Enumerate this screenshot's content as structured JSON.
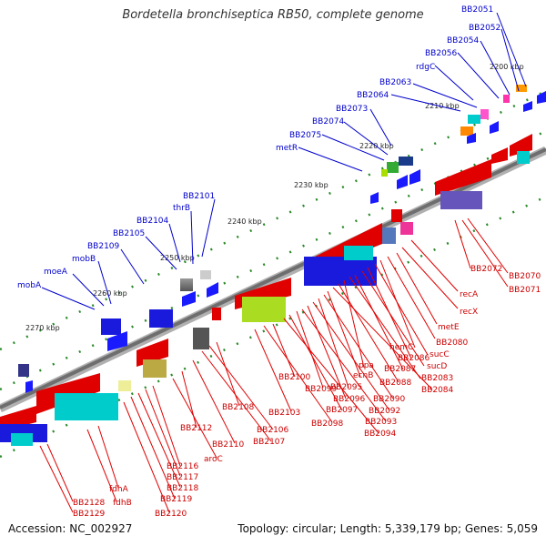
{
  "title": "Bordetella bronchiseptica RB50, complete genome",
  "footer": {
    "accession_label": "Accession:",
    "accession": "NC_002927",
    "topology_label": "Topology:",
    "topology": "circular;",
    "length_label": "Length:",
    "length": "5,339,179 bp;",
    "genes_label": "Genes:",
    "genes": "5,059"
  },
  "colors": {
    "forward": "#0000cc",
    "reverse": "#cc0000",
    "ticks": "#228822",
    "backbone": "#777777"
  },
  "ticks": [
    "2200 kbp",
    "2210 kbp",
    "2220 kbp",
    "2230 kbp",
    "2240 kbp",
    "2250 kbp",
    "2260 kbp",
    "2270 kbp"
  ],
  "forward_genes": [
    "BB2051",
    "BB2052",
    "BB2054",
    "BB2056",
    "rdgC",
    "BB2063",
    "BB2064",
    "BB2073",
    "BB2074",
    "BB2075",
    "metR",
    "BB2101",
    "thrB",
    "BB2104",
    "BB2105",
    "BB2109",
    "mobB",
    "moeA",
    "mobA"
  ],
  "reverse_genes": [
    "BB2070",
    "BB2071",
    "BB2072",
    "recA",
    "recX",
    "metE",
    "BB2080",
    "hemC",
    "sucC",
    "BB2086",
    "sucD",
    "BB2087",
    "BB2083",
    "ppa",
    "BB2088",
    "BB2084",
    "ecnB",
    "BB2090",
    "BB2095",
    "BB2092",
    "BB2096",
    "BB2093",
    "BB2099",
    "BB2097",
    "BB2094",
    "BB2100",
    "BB2098",
    "BB2103",
    "BB2108",
    "BB2106",
    "BB2107",
    "BB2112",
    "BB2110",
    "aroC",
    "BB2116",
    "BB2117",
    "BB2118",
    "fdhA",
    "BB2119",
    "fdhB",
    "BB2120",
    "BB2128",
    "BB2129"
  ]
}
